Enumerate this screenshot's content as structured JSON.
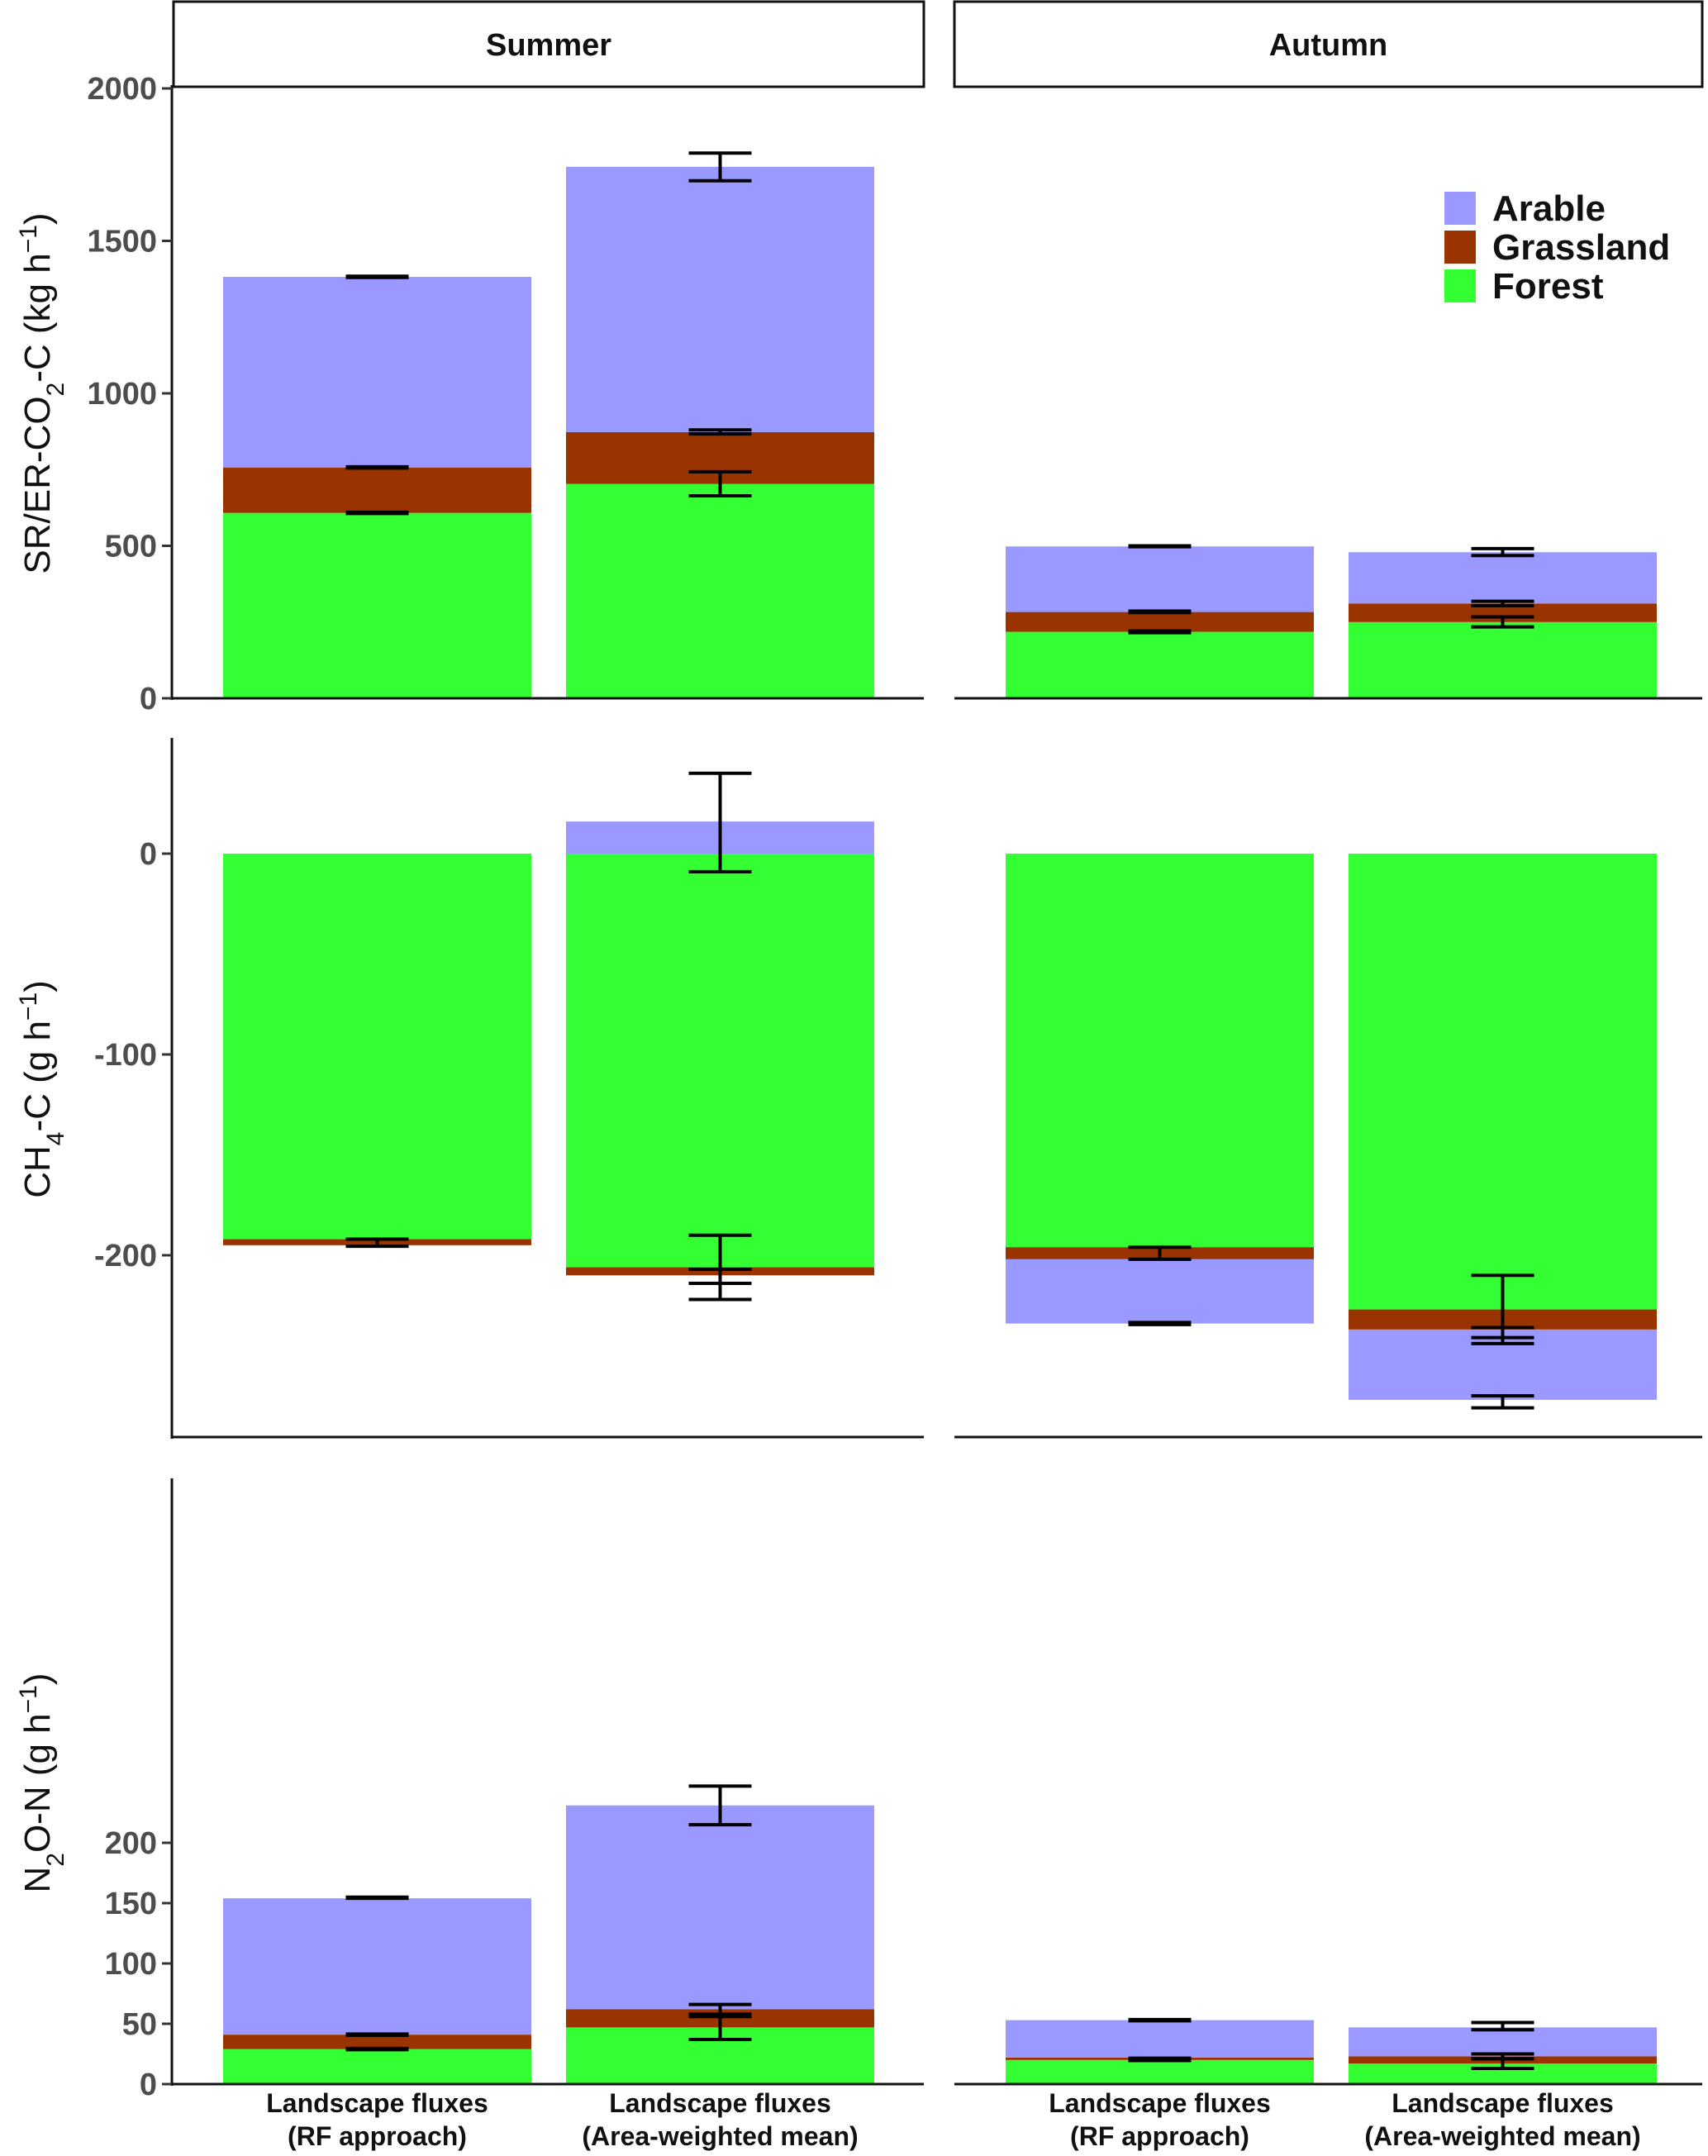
{
  "chart_data": {
    "type": "bar",
    "stacked": true,
    "facets": {
      "columns": [
        "Summer",
        "Autumn"
      ],
      "rows": [
        "SR/ER-CO2-C",
        "CH4-C",
        "N2O-N"
      ]
    },
    "categories": [
      "Landscape fluxes\n(RF approach)",
      "Landscape fluxes\n(Area-weighted mean)"
    ],
    "legend": {
      "position": "top-right",
      "items": [
        {
          "name": "Arable",
          "color": "#9999ff"
        },
        {
          "name": "Grassland",
          "color": "#993300"
        },
        {
          "name": "Forest",
          "color": "#33ff33"
        }
      ]
    },
    "panels": [
      {
        "row": 0,
        "ylabel_parts": [
          "SR/ER-CO",
          "2",
          "-C (kg h",
          "−1",
          ")"
        ],
        "ylim": [
          0,
          2000
        ],
        "ticks": [
          0,
          500,
          1000,
          1500,
          2000
        ],
        "cells": [
          {
            "column": 0,
            "bars": [
              {
                "segments": [
                  {
                    "name": "Forest",
                    "from": 0,
                    "to": 608
                  },
                  {
                    "name": "Grassland",
                    "from": 608,
                    "to": 757
                  },
                  {
                    "name": "Arable",
                    "from": 757,
                    "to": 1382
                  }
                ],
                "errorbars": [
                  {
                    "lo": 606,
                    "hi": 610
                  },
                  {
                    "lo": 755,
                    "hi": 759
                  },
                  {
                    "lo": 1380,
                    "hi": 1384
                  }
                ]
              },
              {
                "segments": [
                  {
                    "name": "Forest",
                    "from": 0,
                    "to": 703
                  },
                  {
                    "name": "Grassland",
                    "from": 703,
                    "to": 873
                  },
                  {
                    "name": "Arable",
                    "from": 873,
                    "to": 1743
                  }
                ],
                "errorbars": [
                  {
                    "lo": 664,
                    "hi": 743
                  },
                  {
                    "lo": 867,
                    "hi": 880
                  },
                  {
                    "lo": 1697,
                    "hi": 1788
                  }
                ]
              }
            ]
          },
          {
            "column": 1,
            "bars": [
              {
                "segments": [
                  {
                    "name": "Forest",
                    "from": 0,
                    "to": 218
                  },
                  {
                    "name": "Grassland",
                    "from": 218,
                    "to": 283
                  },
                  {
                    "name": "Arable",
                    "from": 283,
                    "to": 498
                  }
                ],
                "errorbars": [
                  {
                    "lo": 215,
                    "hi": 221
                  },
                  {
                    "lo": 281,
                    "hi": 286
                  },
                  {
                    "lo": 497,
                    "hi": 500
                  }
                ]
              },
              {
                "segments": [
                  {
                    "name": "Forest",
                    "from": 0,
                    "to": 250
                  },
                  {
                    "name": "Grassland",
                    "from": 250,
                    "to": 311
                  },
                  {
                    "name": "Arable",
                    "from": 311,
                    "to": 479
                  }
                ],
                "errorbars": [
                  {
                    "lo": 234,
                    "hi": 267
                  },
                  {
                    "lo": 304,
                    "hi": 318
                  },
                  {
                    "lo": 468,
                    "hi": 491
                  }
                ]
              }
            ]
          }
        ]
      },
      {
        "row": 1,
        "ylabel_parts": [
          "CH",
          "4",
          "-C (g h",
          "−1",
          ")"
        ],
        "ylim": [
          -285,
          45
        ],
        "ticks": [
          -200,
          -100,
          0
        ],
        "cells": [
          {
            "column": 0,
            "bars": [
              {
                "segments": [
                  {
                    "name": "Forest",
                    "from": 0,
                    "to": -192
                  },
                  {
                    "name": "Grassland",
                    "from": -192,
                    "to": -195
                  }
                ],
                "errorbars": [
                  {
                    "lo": -195.5,
                    "hi": -192
                  }
                ]
              },
              {
                "segments": [
                  {
                    "name": "Arable",
                    "from": 0,
                    "to": 16
                  },
                  {
                    "name": "Forest",
                    "from": 0,
                    "to": -206
                  },
                  {
                    "name": "Grassland",
                    "from": -206,
                    "to": -210
                  }
                ],
                "errorbars": [
                  {
                    "lo": -9,
                    "hi": 40
                  },
                  {
                    "lo": -222,
                    "hi": -190
                  },
                  {
                    "lo": -214,
                    "hi": -207
                  }
                ]
              }
            ]
          },
          {
            "column": 1,
            "bars": [
              {
                "segments": [
                  {
                    "name": "Forest",
                    "from": 0,
                    "to": -196
                  },
                  {
                    "name": "Grassland",
                    "from": -196,
                    "to": -202
                  },
                  {
                    "name": "Arable",
                    "from": -202,
                    "to": -234
                  }
                ],
                "errorbars": [
                  {
                    "lo": -202,
                    "hi": -196
                  },
                  {
                    "lo": -234.5,
                    "hi": -233.5
                  }
                ]
              },
              {
                "segments": [
                  {
                    "name": "Forest",
                    "from": 0,
                    "to": -227
                  },
                  {
                    "name": "Grassland",
                    "from": -227,
                    "to": -237
                  },
                  {
                    "name": "Arable",
                    "from": -237,
                    "to": -272
                  }
                ],
                "errorbars": [
                  {
                    "lo": -244,
                    "hi": -210
                  },
                  {
                    "lo": -241,
                    "hi": -236
                  },
                  {
                    "lo": -276,
                    "hi": -270
                  }
                ]
              }
            ]
          }
        ]
      },
      {
        "row": 2,
        "ylabel_parts": [
          "N",
          "2",
          "O-N (g h",
          "−1",
          ")"
        ],
        "ylim": [
          0,
          250
        ],
        "ticks": [
          0,
          50,
          100,
          150,
          200
        ],
        "cells": [
          {
            "column": 0,
            "bars": [
              {
                "segments": [
                  {
                    "name": "Forest",
                    "from": 0,
                    "to": 29
                  },
                  {
                    "name": "Grassland",
                    "from": 29,
                    "to": 41
                  },
                  {
                    "name": "Arable",
                    "from": 41,
                    "to": 154
                  }
                ],
                "errorbars": [
                  {
                    "lo": 28.5,
                    "hi": 29.5
                  },
                  {
                    "lo": 40.5,
                    "hi": 41.5
                  },
                  {
                    "lo": 154,
                    "hi": 155
                  }
                ]
              },
              {
                "segments": [
                  {
                    "name": "Forest",
                    "from": 0,
                    "to": 47
                  },
                  {
                    "name": "Grassland",
                    "from": 47,
                    "to": 62
                  },
                  {
                    "name": "Arable",
                    "from": 62,
                    "to": 231
                  }
                ],
                "errorbars": [
                  {
                    "lo": 37,
                    "hi": 58
                  },
                  {
                    "lo": 56,
                    "hi": 66
                  },
                  {
                    "lo": 215,
                    "hi": 247
                  }
                ]
              }
            ]
          },
          {
            "column": 1,
            "bars": [
              {
                "segments": [
                  {
                    "name": "Forest",
                    "from": 0,
                    "to": 20
                  },
                  {
                    "name": "Grassland",
                    "from": 20,
                    "to": 22
                  },
                  {
                    "name": "Arable",
                    "from": 22,
                    "to": 53
                  }
                ],
                "errorbars": [
                  {
                    "lo": 19.5,
                    "hi": 21.5
                  },
                  {
                    "lo": 52.5,
                    "hi": 53.5
                  }
                ]
              },
              {
                "segments": [
                  {
                    "name": "Forest",
                    "from": 0,
                    "to": 17
                  },
                  {
                    "name": "Grassland",
                    "from": 17,
                    "to": 23
                  },
                  {
                    "name": "Arable",
                    "from": 23,
                    "to": 47
                  }
                ],
                "errorbars": [
                  {
                    "lo": 13,
                    "hi": 21
                  },
                  {
                    "lo": 21,
                    "hi": 25
                  },
                  {
                    "lo": 45,
                    "hi": 51
                  }
                ]
              }
            ]
          }
        ]
      }
    ]
  }
}
